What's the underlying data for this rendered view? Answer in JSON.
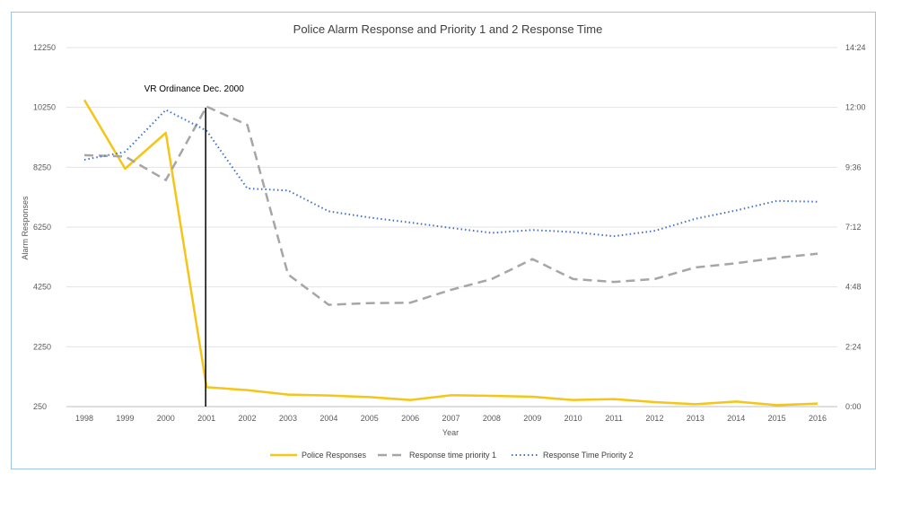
{
  "chart_data": {
    "type": "line",
    "title": "Police Alarm Response and Priority 1 and 2 Response Time",
    "xlabel": "Year",
    "ylabel": "Alarm Responses",
    "categories": [
      "1998",
      "1999",
      "2000",
      "2001",
      "2002",
      "2003",
      "2004",
      "2005",
      "2006",
      "2007",
      "2008",
      "2009",
      "2010",
      "2011",
      "2012",
      "2013",
      "2014",
      "2015",
      "2016"
    ],
    "ylim": [
      250,
      12250
    ],
    "yticks": [
      "12250",
      "10250",
      "8250",
      "6250",
      "4250",
      "2250",
      "250"
    ],
    "y2lim_minutes": [
      0,
      864
    ],
    "y2ticks": [
      "14:24",
      "12:00",
      "9:36",
      "7:12",
      "4:48",
      "2:24",
      "0:00"
    ],
    "annotation": {
      "label": "VR Ordinance Dec. 2000",
      "x_category": "2001"
    },
    "series": [
      {
        "name": "Police Responses",
        "axis": "left",
        "style": "solid",
        "color": "#f5c518",
        "values": [
          10500,
          8200,
          9400,
          900,
          800,
          650,
          620,
          570,
          470,
          630,
          610,
          580,
          470,
          500,
          400,
          330,
          420,
          300,
          350
        ]
      },
      {
        "name": "Response time priority 1",
        "axis": "right",
        "style": "dashed",
        "color": "#a6a6a6",
        "values_minutes": [
          605,
          602,
          545,
          722,
          678,
          318,
          245,
          249,
          250,
          281,
          307,
          355,
          307,
          300,
          307,
          335,
          345,
          358,
          368
        ]
      },
      {
        "name": "Response Time Priority 2",
        "axis": "right",
        "style": "dotted",
        "color": "#4472c4",
        "values_minutes": [
          594,
          613,
          714,
          664,
          525,
          520,
          470,
          455,
          443,
          430,
          418,
          425,
          420,
          410,
          423,
          452,
          472,
          495,
          493
        ]
      }
    ]
  }
}
